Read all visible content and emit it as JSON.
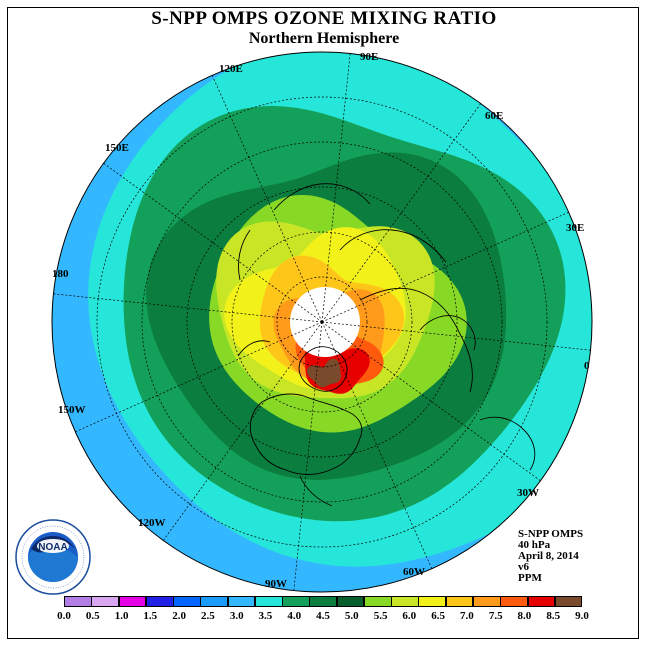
{
  "header": {
    "title": "S-NPP OMPS OZONE MIXING RATIO",
    "subtitle": "Northern Hemisphere"
  },
  "longitude_labels": [
    {
      "id": "90e",
      "text": "90E"
    },
    {
      "id": "60e",
      "text": "60E"
    },
    {
      "id": "30e",
      "text": "30E"
    },
    {
      "id": "0",
      "text": "0"
    },
    {
      "id": "30w",
      "text": "30W"
    },
    {
      "id": "60w",
      "text": "60W"
    },
    {
      "id": "90w",
      "text": "90W"
    },
    {
      "id": "120w",
      "text": "120W"
    },
    {
      "id": "150w",
      "text": "150W"
    },
    {
      "id": "180",
      "text": "180"
    },
    {
      "id": "150e",
      "text": "150E"
    },
    {
      "id": "120e",
      "text": "120E"
    }
  ],
  "info": {
    "instrument": "S-NPP OMPS",
    "level": "40 hPa",
    "date": "April 8, 2014",
    "version": "v6",
    "units": "PPM"
  },
  "colorbar": {
    "ticks": [
      "0.0",
      "0.5",
      "1.0",
      "1.5",
      "2.0",
      "2.5",
      "3.0",
      "3.5",
      "4.0",
      "4.5",
      "5.0",
      "5.5",
      "6.0",
      "6.5",
      "7.0",
      "7.5",
      "8.0",
      "8.5",
      "9.0"
    ],
    "colors": [
      "#b27ee6",
      "#d9a6f2",
      "#e600e6",
      "#2020e6",
      "#0066ff",
      "#1a9cff",
      "#33b8ff",
      "#26e6d9",
      "#13a05a",
      "#0b7d3e",
      "#065f2c",
      "#88d926",
      "#c8e626",
      "#f2f21a",
      "#ffc61a",
      "#ff9a1a",
      "#ff5a0d",
      "#e60000",
      "#7a4a2c"
    ]
  },
  "logo": {
    "text": "NOAA",
    "ring_text": "NATIONAL OCEANIC AND ATMOSPHERIC ADMINISTRATION · U.S. DEPARTMENT OF COMMERCE"
  },
  "map": {
    "projection": "north polar stereographic",
    "no_data_region": "polar night (white disk near pole)",
    "contour_colors": {
      "outer": "#33b8ff",
      "band_3_5": "#26e6d9",
      "band_4_0": "#13a05a",
      "band_4_5": "#0b7d3e",
      "band_5_0": "#88d926",
      "band_5_5": "#c8e626",
      "band_6_0": "#f2f21a",
      "band_6_5": "#ffc61a",
      "band_7_0": "#ff9a1a",
      "band_7_5": "#ff5a0d",
      "band_8_0": "#e60000",
      "band_8_5": "#7a4a2c",
      "nodata": "#ffffff"
    }
  }
}
